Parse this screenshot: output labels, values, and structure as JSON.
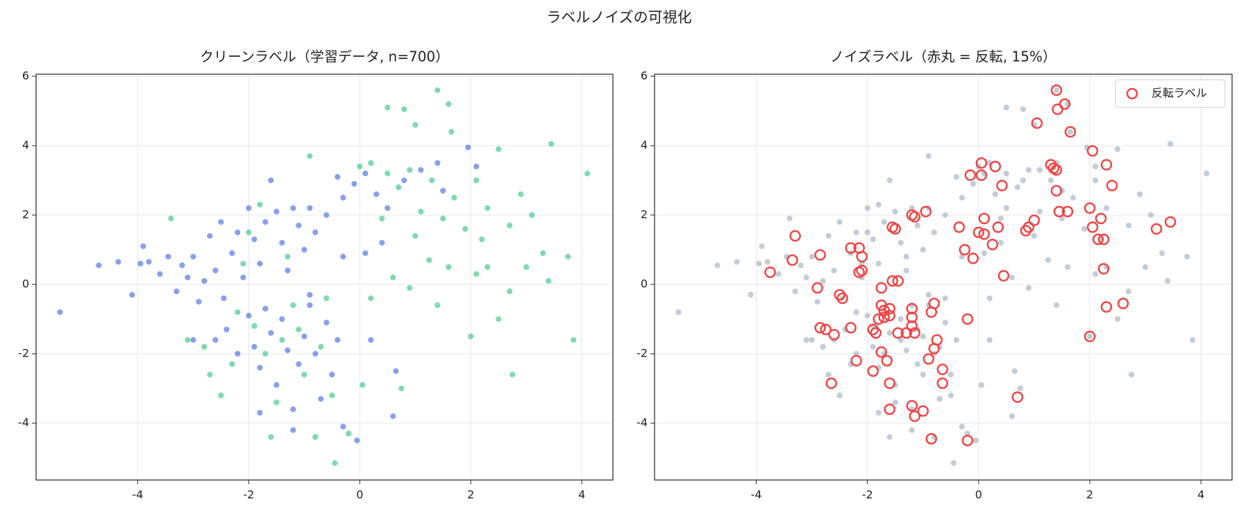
{
  "title": "ラベルノイズの可視化",
  "chart_data": [
    {
      "type": "scatter",
      "title": "クリーンラベル（学習データ, n=700）",
      "xlim": [
        -5.83,
        4.56
      ],
      "ylim": [
        -5.64,
        6.06
      ],
      "xticks": [
        -4,
        -2,
        0,
        2,
        4
      ],
      "yticks": [
        -4,
        -2,
        0,
        2,
        4,
        6
      ],
      "grid": true,
      "series": [
        {
          "color": "#3b63e0",
          "opacity": 0.6,
          "x": [
            -5.4,
            -4.7,
            -4.35,
            -4.1,
            -3.95,
            -3.9,
            -3.8,
            -3.6,
            -3.45,
            -3.3,
            -3.2,
            -3.1,
            -3.0,
            -2.9,
            -2.8,
            -2.7,
            -2.6,
            -2.5,
            -2.45,
            -2.3,
            -2.2,
            -2.1,
            -2.0,
            -1.9,
            -1.8,
            -1.7,
            -1.6,
            -1.5,
            -1.4,
            -1.3,
            -1.2,
            -1.1,
            -1.0,
            -0.9,
            -0.8,
            -0.6,
            -0.4,
            -0.3,
            -0.1,
            0.1,
            0.3,
            0.5,
            0.8,
            1.1,
            1.4,
            1.5,
            1.95,
            2.1,
            -2.4,
            -2.2,
            -2.0,
            -1.9,
            -1.8,
            -1.7,
            -1.6,
            -1.5,
            -1.4,
            -1.3,
            -1.2,
            -1.1,
            -1.0,
            -0.9,
            -0.8,
            -0.7,
            -0.6,
            -0.5,
            -0.4,
            -0.3,
            -0.05,
            0.2,
            0.6,
            0.65,
            -1.8,
            -2.6,
            -3.0,
            -1.2,
            -0.9,
            0.1,
            0.4,
            -0.3
          ],
          "y": [
            -0.8,
            0.55,
            0.65,
            -0.3,
            0.6,
            1.1,
            0.65,
            0.3,
            0.8,
            -0.2,
            0.55,
            0.2,
            0.8,
            -0.5,
            0.1,
            1.4,
            0.4,
            1.8,
            -0.4,
            0.9,
            1.5,
            0.2,
            2.2,
            1.3,
            0.6,
            1.8,
            3.0,
            2.1,
            1.2,
            0.4,
            2.2,
            1.7,
            1.0,
            2.2,
            1.5,
            2.0,
            3.1,
            2.5,
            2.9,
            3.2,
            2.6,
            2.2,
            3.0,
            3.3,
            3.5,
            2.7,
            3.95,
            3.4,
            -1.3,
            -2.0,
            -0.9,
            -1.8,
            -2.4,
            -0.7,
            -1.4,
            -2.9,
            -1.0,
            -1.9,
            -3.6,
            -2.3,
            -1.5,
            -0.6,
            -2.0,
            -3.3,
            -1.1,
            -2.6,
            -1.6,
            -4.1,
            -4.5,
            -1.6,
            -3.8,
            -2.5,
            -3.7,
            -1.6,
            -1.6,
            -4.2,
            -0.3,
            0.9,
            1.2,
            0.8
          ]
        },
        {
          "color": "#2bbf7e",
          "opacity": 0.6,
          "x": [
            -3.4,
            -3.1,
            -2.8,
            -2.7,
            -2.5,
            -2.3,
            -2.2,
            -2.1,
            -2.0,
            -1.9,
            -1.8,
            -1.7,
            -1.6,
            -1.5,
            -1.4,
            -1.3,
            -1.2,
            -1.1,
            -1.0,
            -0.9,
            -0.8,
            -0.7,
            -0.6,
            -0.5,
            -0.45,
            -0.2,
            0.05,
            0.2,
            0.5,
            0.8,
            1.0,
            1.4,
            1.6,
            1.65,
            0.0,
            0.2,
            0.5,
            0.7,
            0.9,
            1.1,
            1.3,
            1.5,
            1.7,
            1.9,
            2.1,
            2.3,
            2.5,
            2.7,
            2.9,
            3.1,
            3.3,
            3.45,
            3.75,
            4.1,
            3.85,
            2.75,
            2.0,
            2.5,
            2.7,
            2.1,
            1.4,
            1.0,
            0.6,
            0.9,
            1.6,
            2.3,
            3.0,
            3.4,
            0.4,
            0.75,
            1.25,
            2.2
          ],
          "y": [
            1.9,
            -1.6,
            -1.8,
            -2.6,
            -3.2,
            -2.3,
            -0.8,
            0.6,
            1.5,
            -1.2,
            2.3,
            -2.0,
            -4.4,
            -3.4,
            -1.6,
            0.8,
            -0.6,
            -1.3,
            -2.6,
            3.7,
            -4.4,
            -1.8,
            -0.4,
            -3.2,
            -5.15,
            -4.3,
            -2.9,
            -0.4,
            5.1,
            5.05,
            4.6,
            5.6,
            5.2,
            4.4,
            3.4,
            3.5,
            3.2,
            2.8,
            3.3,
            2.1,
            3.0,
            1.9,
            2.5,
            1.6,
            3.0,
            2.2,
            3.9,
            1.7,
            2.6,
            2.0,
            0.9,
            4.05,
            0.8,
            3.2,
            -1.6,
            -2.6,
            -1.5,
            -1.0,
            -0.2,
            0.3,
            -0.6,
            1.4,
            0.2,
            -0.1,
            0.5,
            0.5,
            0.5,
            0.1,
            1.9,
            -3.0,
            0.7,
            1.3
          ]
        }
      ]
    },
    {
      "type": "scatter",
      "title": "ノイズラベル（赤丸 = 反転, 15%）",
      "xlim": [
        -5.83,
        4.56
      ],
      "ylim": [
        -5.64,
        6.06
      ],
      "xticks": [
        -4,
        -2,
        0,
        2,
        4
      ],
      "yticks": [
        -4,
        -2,
        0,
        2,
        4,
        6
      ],
      "grid": true,
      "legend": "upper right",
      "series": [
        {
          "color": "#94a3b8",
          "opacity": 0.55,
          "x": [
            -5.4,
            -4.7,
            -4.35,
            -4.1,
            -3.95,
            -3.9,
            -3.8,
            -3.6,
            -3.45,
            -3.3,
            -3.2,
            -3.1,
            -3.0,
            -2.9,
            -2.8,
            -2.7,
            -2.6,
            -2.5,
            -2.45,
            -2.3,
            -2.2,
            -2.1,
            -2.0,
            -1.9,
            -1.8,
            -1.7,
            -1.6,
            -1.5,
            -1.4,
            -1.3,
            -1.2,
            -1.1,
            -1.0,
            -0.9,
            -0.8,
            -0.6,
            -0.4,
            -0.3,
            -0.1,
            0.1,
            0.3,
            0.5,
            0.8,
            1.1,
            1.4,
            1.5,
            1.95,
            2.1,
            -2.4,
            -2.2,
            -2.0,
            -1.9,
            -1.8,
            -1.7,
            -1.6,
            -1.5,
            -1.4,
            -1.3,
            -1.2,
            -1.1,
            -1.0,
            -0.9,
            -0.8,
            -0.7,
            -0.6,
            -0.5,
            -0.4,
            -0.3,
            -0.05,
            0.2,
            0.6,
            0.65,
            -1.8,
            -2.6,
            -3.0,
            -1.2,
            -0.9,
            0.1,
            0.4,
            -0.3,
            -3.4,
            -3.1,
            -2.8,
            -2.7,
            -2.5,
            -2.3,
            -2.2,
            -2.1,
            -2.0,
            -1.9,
            -1.8,
            -1.7,
            -1.6,
            -1.5,
            -1.4,
            -1.3,
            -1.2,
            -1.1,
            -1.0,
            -0.9,
            -0.8,
            -0.7,
            -0.6,
            -0.5,
            -0.45,
            -0.2,
            0.05,
            0.2,
            0.5,
            0.8,
            1.0,
            1.4,
            1.6,
            1.65,
            0.0,
            0.2,
            0.5,
            0.7,
            0.9,
            1.1,
            1.3,
            1.5,
            1.7,
            1.9,
            2.1,
            2.3,
            2.5,
            2.7,
            2.9,
            3.1,
            3.3,
            3.45,
            3.75,
            4.1,
            3.85,
            2.75,
            2.0,
            2.5,
            2.7,
            2.1,
            1.4,
            1.0,
            0.6,
            0.9,
            1.6,
            2.3,
            3.0,
            3.4,
            0.4,
            0.75,
            1.25,
            2.2
          ],
          "y": [
            -0.8,
            0.55,
            0.65,
            -0.3,
            0.6,
            1.1,
            0.65,
            0.3,
            0.8,
            -0.2,
            0.55,
            0.2,
            0.8,
            -0.5,
            0.1,
            1.4,
            0.4,
            1.8,
            -0.4,
            0.9,
            1.5,
            0.2,
            2.2,
            1.3,
            0.6,
            1.8,
            3.0,
            2.1,
            1.2,
            0.4,
            2.2,
            1.7,
            1.0,
            2.2,
            1.5,
            2.0,
            3.1,
            2.5,
            2.9,
            3.2,
            2.6,
            2.2,
            3.0,
            3.3,
            3.5,
            2.7,
            3.95,
            3.4,
            -1.3,
            -2.0,
            -0.9,
            -1.8,
            -2.4,
            -0.7,
            -1.4,
            -2.9,
            -1.0,
            -1.9,
            -3.6,
            -2.3,
            -1.5,
            -0.6,
            -2.0,
            -3.3,
            -1.1,
            -2.6,
            -1.6,
            -4.1,
            -4.5,
            -1.6,
            -3.8,
            -2.5,
            -3.7,
            -1.6,
            -1.6,
            -4.2,
            -0.3,
            0.9,
            1.2,
            0.8,
            1.9,
            -1.6,
            -1.8,
            -2.6,
            -3.2,
            -2.3,
            -0.8,
            0.6,
            1.5,
            -1.2,
            2.3,
            -2.0,
            -4.4,
            -3.4,
            -1.6,
            0.8,
            -0.6,
            -1.3,
            -2.6,
            3.7,
            -4.4,
            -1.8,
            -0.4,
            -3.2,
            -5.15,
            -4.3,
            -2.9,
            -0.4,
            5.1,
            5.05,
            4.6,
            5.6,
            5.2,
            4.4,
            3.4,
            3.5,
            3.2,
            2.8,
            3.3,
            2.1,
            3.0,
            1.9,
            2.5,
            1.6,
            3.0,
            2.2,
            3.9,
            1.7,
            2.6,
            2.0,
            0.9,
            4.05,
            0.8,
            3.2,
            -1.6,
            -2.6,
            -1.5,
            -1.0,
            -0.2,
            0.3,
            -0.6,
            1.4,
            0.2,
            -0.1,
            0.5,
            0.5,
            0.5,
            0.1,
            1.9,
            -3.0,
            0.7,
            1.3
          ]
        },
        {
          "name": "反転ラベル",
          "color": "#ef4444",
          "filled": false,
          "x": [
            1.4,
            1.55,
            1.42,
            1.05,
            1.65,
            2.05,
            1.3,
            1.35,
            1.4,
            2.3,
            0.05,
            0.3,
            -0.15,
            0.05,
            0.42,
            2.4,
            1.4,
            -1.2,
            -1.15,
            -0.95,
            1.45,
            1.6,
            2.0,
            2.2,
            1.0,
            0.1,
            0.9,
            0.35,
            0.0,
            0.1,
            -1.55,
            -1.5,
            -0.35,
            2.05,
            2.15,
            2.25,
            3.2,
            3.45,
            0.85,
            -3.3,
            -2.3,
            -2.15,
            -2.1,
            -2.85,
            -3.35,
            -3.75,
            -2.1,
            -2.15,
            -0.25,
            -0.1,
            0.25,
            2.25,
            0.45,
            -1.55,
            -1.45,
            -2.9,
            -1.75,
            -2.5,
            -2.45,
            -1.75,
            -1.7,
            -1.6,
            -1.6,
            -1.2,
            -1.2,
            -0.8,
            -0.85,
            2.3,
            2.6,
            -2.85,
            -2.75,
            -2.6,
            -2.3,
            -1.9,
            -1.85,
            -1.8,
            -1.7,
            -1.45,
            -1.3,
            -1.2,
            -1.15,
            -0.2,
            -0.75,
            -0.8,
            2.0,
            -1.75,
            -1.65,
            -2.2,
            -1.9,
            -0.9,
            -0.65,
            -2.65,
            -1.6,
            -0.65,
            0.7,
            -1.6,
            -1.2,
            -1.15,
            -1.0,
            -0.85,
            -0.2
          ],
          "y": [
            5.6,
            5.2,
            5.05,
            4.65,
            4.4,
            3.85,
            3.45,
            3.35,
            3.3,
            3.45,
            3.5,
            3.4,
            3.15,
            3.15,
            2.85,
            2.85,
            2.7,
            2.0,
            1.95,
            2.1,
            2.1,
            2.1,
            2.2,
            1.9,
            1.85,
            1.9,
            1.65,
            1.65,
            1.5,
            1.45,
            1.65,
            1.6,
            1.65,
            1.65,
            1.3,
            1.3,
            1.6,
            1.8,
            1.55,
            1.4,
            1.05,
            1.05,
            0.8,
            0.85,
            0.7,
            0.35,
            0.4,
            0.35,
            1.0,
            0.75,
            1.15,
            0.45,
            0.25,
            0.1,
            0.1,
            -0.1,
            -0.1,
            -0.3,
            -0.4,
            -0.6,
            -0.75,
            -0.7,
            -0.9,
            -0.7,
            -0.95,
            -0.55,
            -0.8,
            -0.65,
            -0.55,
            -1.25,
            -1.3,
            -1.45,
            -1.25,
            -1.3,
            -1.4,
            -1.0,
            -0.95,
            -1.4,
            -1.4,
            -1.2,
            -1.4,
            -1.0,
            -1.6,
            -1.85,
            -1.5,
            -1.95,
            -2.2,
            -2.2,
            -2.5,
            -2.15,
            -2.45,
            -2.85,
            -2.85,
            -2.85,
            -3.25,
            -3.6,
            -3.5,
            -3.8,
            -3.65,
            -4.45,
            -4.5
          ]
        }
      ]
    }
  ]
}
